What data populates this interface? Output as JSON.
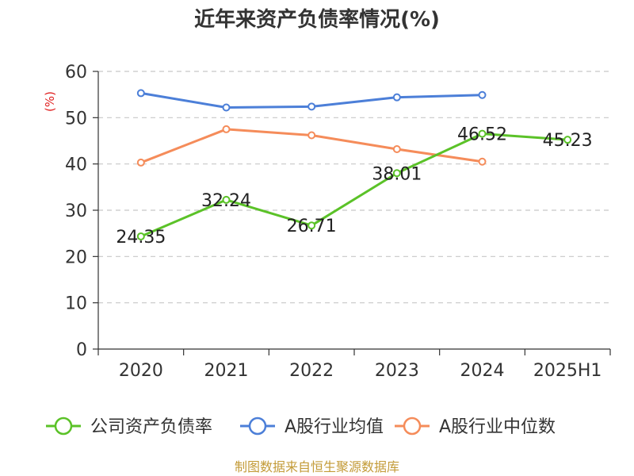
{
  "chart_data": {
    "type": "line",
    "title": "近年来资产负债率情况(%)",
    "ylabel": "(%)",
    "categories": [
      "2020",
      "2021",
      "2022",
      "2023",
      "2024",
      "2025H1"
    ],
    "yticks": [
      "0",
      "10",
      "20",
      "30",
      "40",
      "50",
      "60"
    ],
    "ylim": [
      0,
      60
    ],
    "grid": true,
    "legend_position": "bottom",
    "series": [
      {
        "name": "公司资产负债率",
        "color": "#5bc228",
        "values": [
          24.35,
          32.24,
          26.71,
          38.01,
          46.52,
          45.23
        ],
        "labels": [
          "24.35",
          "32.24",
          "26.71",
          "38.01",
          "46.52",
          "45.23"
        ]
      },
      {
        "name": "A股行业均值",
        "color": "#4c7fd8",
        "values": [
          55.3,
          52.2,
          52.4,
          54.4,
          54.9,
          null
        ]
      },
      {
        "name": "A股行业中位数",
        "color": "#f58c5a",
        "values": [
          40.3,
          47.5,
          46.2,
          43.2,
          40.5,
          null
        ]
      }
    ],
    "source": "制图数据来自恒生聚源数据库"
  }
}
